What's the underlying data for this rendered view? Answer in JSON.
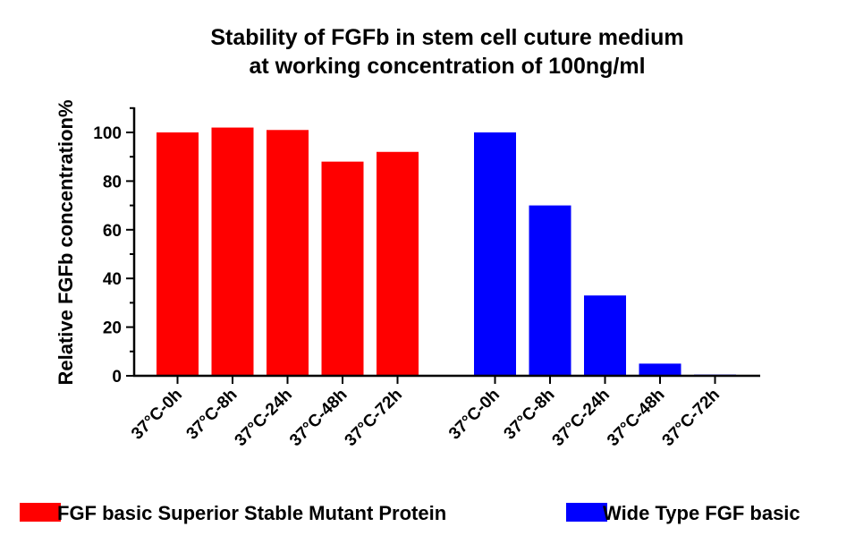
{
  "chart_data": {
    "type": "bar",
    "title": [
      "Stability of FGFb in stem cell cuture medium",
      "at working concentration of 100ng/ml"
    ],
    "ylabel": "Relative FGFb concentration%",
    "xlabel": "",
    "ylim": [
      0,
      110
    ],
    "yticks": [
      0,
      20,
      40,
      60,
      80,
      100
    ],
    "grid": false,
    "legend_position": "bottom",
    "series": [
      {
        "name": "FGF basic Superior Stable Mutant Protein",
        "color": "#ff0000",
        "categories": [
          "37°C-0h",
          "37°C-8h",
          "37°C-24h",
          "37°C-48h",
          "37°C-72h"
        ],
        "values": [
          100,
          102,
          101,
          88,
          92
        ]
      },
      {
        "name": "Wide Type FGF basic",
        "color": "#0000ff",
        "categories": [
          "37°C-0h",
          "37°C-8h",
          "37°C-24h",
          "37°C-48h",
          "37°C-72h"
        ],
        "values": [
          100,
          70,
          33,
          5,
          0.5
        ]
      }
    ]
  }
}
